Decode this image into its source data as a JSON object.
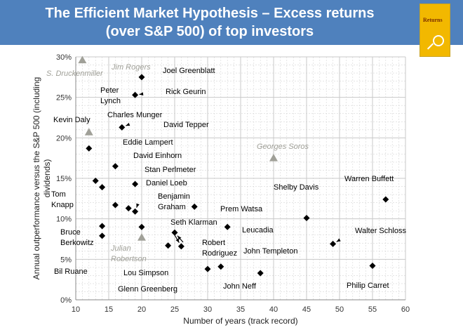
{
  "header": {
    "title_line1": "The Efficient Market Hypothesis – Excess returns",
    "title_line2": "(over S&P 500) of  top investors",
    "book_title": "Returns",
    "book_icon": "magnifier-icon"
  },
  "chart_data": {
    "type": "scatter",
    "xlabel": "Number of years (track record)",
    "ylabel": "Annual outperformance versus the S&P 500 (including dividends)",
    "xlim": [
      10,
      60
    ],
    "ylim": [
      0,
      30
    ],
    "x_ticks": [
      10,
      15,
      20,
      25,
      30,
      35,
      40,
      45,
      50,
      55,
      60
    ],
    "y_ticks": [
      "0%",
      "5%",
      "10%",
      "15%",
      "20%",
      "25%",
      "30%"
    ],
    "grid": true,
    "colors": {
      "primary": "#000000",
      "secondary": "#a0a098",
      "grid": "#c8c8c8",
      "banner": "#4f81bd"
    },
    "series": [
      {
        "marker": "diamond",
        "color": "#000000",
        "points": [
          {
            "label": "Joel Greenblatt",
            "x": 20,
            "y": 27.5
          },
          {
            "label": "Rick Geurin",
            "x": 19,
            "y": 25.3
          },
          {
            "label": "Peter Lynch",
            "x": 13,
            "y": 14.7
          },
          {
            "label": "Charles Munger",
            "x": 14,
            "y": 13.9
          },
          {
            "label": "David Tepper",
            "x": 17,
            "y": 21.3
          },
          {
            "label": "Kevin Daly",
            "x": 12,
            "y": 18.7
          },
          {
            "label": "Eddie Lampert",
            "x": 16,
            "y": 16.5
          },
          {
            "label": "David Einhorn",
            "x": 19,
            "y": 14.3
          },
          {
            "label": "Stan Perlmeter",
            "x": 18,
            "y": 11.3
          },
          {
            "label": "Daniel Loeb",
            "x": 19,
            "y": 10.9
          },
          {
            "label": "Tom Knapp",
            "x": 16,
            "y": 11.7
          },
          {
            "label": "Benjamin Graham",
            "x": 20,
            "y": 9.0
          },
          {
            "label": "Prem Watsa",
            "x": 28,
            "y": 11.5
          },
          {
            "label": "Bruce Berkowitz",
            "x": 14,
            "y": 9.1
          },
          {
            "label": "Bil Ruane",
            "x": 14,
            "y": 7.9
          },
          {
            "label": "Seth Klarman",
            "x": 25,
            "y": 8.3
          },
          {
            "label": "Lou Simpson",
            "x": 24,
            "y": 6.7
          },
          {
            "label": "Glenn Greenberg",
            "x": 26,
            "y": 6.6
          },
          {
            "label": "Leucadia",
            "x": 33,
            "y": 9.0
          },
          {
            "label": "Robert Rodriguez",
            "x": 30,
            "y": 3.8
          },
          {
            "label": "John Neff",
            "x": 32,
            "y": 4.1
          },
          {
            "label": "John Templeton",
            "x": 38,
            "y": 3.3
          },
          {
            "label": "Shelby Davis",
            "x": 45,
            "y": 10.1
          },
          {
            "label": "Warren Buffett",
            "x": 57,
            "y": 12.4
          },
          {
            "label": "Walter Schloss",
            "x": 49,
            "y": 6.9
          },
          {
            "label": "Philip Carret",
            "x": 55,
            "y": 4.2
          }
        ]
      },
      {
        "marker": "triangle",
        "color": "#a0a098",
        "points": [
          {
            "label": "Jim Rogers",
            "x": 11,
            "y": 29.6
          },
          {
            "label": "S. Druckenmiller",
            "x": 12,
            "y": 20.7
          },
          {
            "label": "Georges Soros",
            "x": 40,
            "y": 17.5
          },
          {
            "label": "Julian Robertson",
            "x": 20,
            "y": 7.7
          }
        ]
      }
    ]
  }
}
